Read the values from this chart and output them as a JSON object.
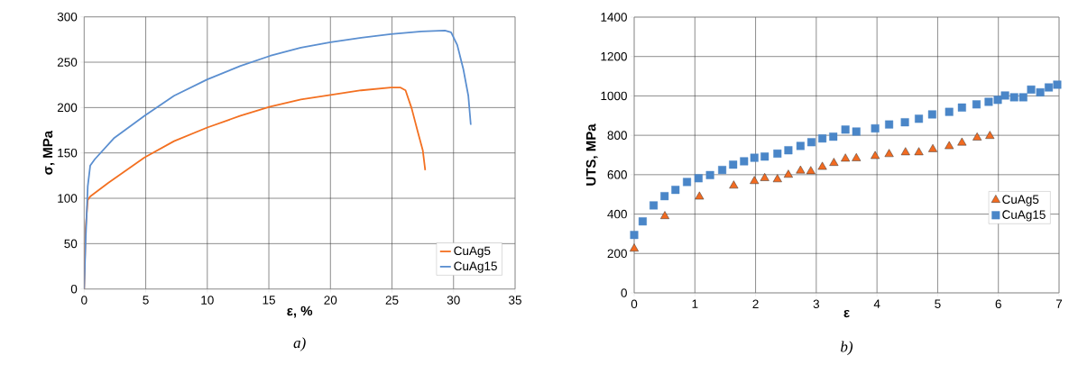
{
  "chart_data": [
    {
      "type": "line",
      "xlabel": "ε, %",
      "ylabel": "σ, MPa",
      "annotations": [
        "a)"
      ],
      "xlim": [
        0,
        35
      ],
      "ylim": [
        0,
        300
      ],
      "xticks": [
        0,
        5,
        10,
        15,
        20,
        25,
        30,
        35
      ],
      "yticks": [
        0,
        50,
        100,
        150,
        200,
        250,
        300
      ],
      "grid": true,
      "legend": "bottom right",
      "series": [
        {
          "name": "CuAg5",
          "color": "#f37021",
          "x": [
            0,
            0.12,
            0.29,
            0.49,
            1.95,
            4.9,
            7.3,
            10.0,
            12.7,
            15.1,
            17.6,
            20.0,
            22.5,
            24.9,
            25.7,
            26.1,
            26.6,
            27.1,
            27.5,
            27.7
          ],
          "values": [
            0,
            67,
            98,
            102,
            117,
            145,
            163,
            178,
            191,
            201,
            209,
            214,
            219,
            222,
            222,
            219,
            199,
            173,
            153,
            131
          ]
        },
        {
          "name": "CuAg15",
          "color": "#5b8fd0",
          "x": [
            0,
            0.12,
            0.29,
            0.49,
            0.86,
            2.4,
            4.9,
            7.3,
            10.0,
            12.7,
            15.1,
            17.6,
            20.0,
            22.5,
            24.9,
            27.4,
            29.3,
            29.8,
            30.3,
            30.8,
            31.2,
            31.4
          ],
          "values": [
            0,
            54,
            113,
            136,
            143,
            166,
            191,
            213,
            231,
            246,
            257,
            266,
            272,
            277,
            281,
            284,
            285,
            283,
            269,
            242,
            213,
            181
          ]
        }
      ]
    },
    {
      "type": "scatter",
      "xlabel": "ε",
      "ylabel": "UTS, MPa",
      "annotations": [
        "b)"
      ],
      "xlim": [
        0,
        7
      ],
      "ylim": [
        0,
        1400
      ],
      "xticks": [
        0,
        1,
        2,
        3,
        4,
        5,
        6,
        7
      ],
      "yticks": [
        0,
        200,
        400,
        600,
        800,
        1000,
        1200,
        1400
      ],
      "grid": true,
      "legend": "right",
      "series": [
        {
          "name": "CuAg5",
          "color": "#f26b21",
          "marker": "triangle",
          "x": [
            0,
            0.505,
            1.075,
            1.64,
            1.98,
            2.15,
            2.36,
            2.54,
            2.74,
            2.91,
            3.1,
            3.29,
            3.48,
            3.66,
            3.97,
            4.2,
            4.47,
            4.69,
            4.92,
            5.19,
            5.4,
            5.65,
            5.86
          ],
          "values": [
            224,
            389,
            488,
            544,
            567,
            582,
            576,
            599,
            620,
            617,
            639,
            659,
            681,
            683,
            694,
            704,
            713,
            713,
            729,
            744,
            762,
            788,
            796
          ]
        },
        {
          "name": "CuAg15",
          "color": "#4a86c8",
          "marker": "square",
          "x": [
            0,
            0.14,
            0.32,
            0.5,
            0.68,
            0.87,
            1.06,
            1.25,
            1.45,
            1.63,
            1.81,
            1.98,
            2.15,
            2.36,
            2.54,
            2.74,
            2.92,
            3.1,
            3.28,
            3.48,
            3.66,
            3.97,
            4.2,
            4.46,
            4.69,
            4.91,
            5.19,
            5.4,
            5.64,
            5.84,
            5.99,
            6.11,
            6.26,
            6.41,
            6.54,
            6.69,
            6.83,
            6.97
          ],
          "values": [
            294,
            363,
            444,
            491,
            523,
            563,
            582,
            598,
            624,
            651,
            668,
            686,
            692,
            707,
            724,
            746,
            765,
            784,
            793,
            829,
            819,
            835,
            855,
            866,
            884,
            906,
            919,
            941,
            957,
            970,
            980,
            1002,
            993,
            993,
            1032,
            1018,
            1043,
            1057
          ]
        }
      ]
    }
  ]
}
